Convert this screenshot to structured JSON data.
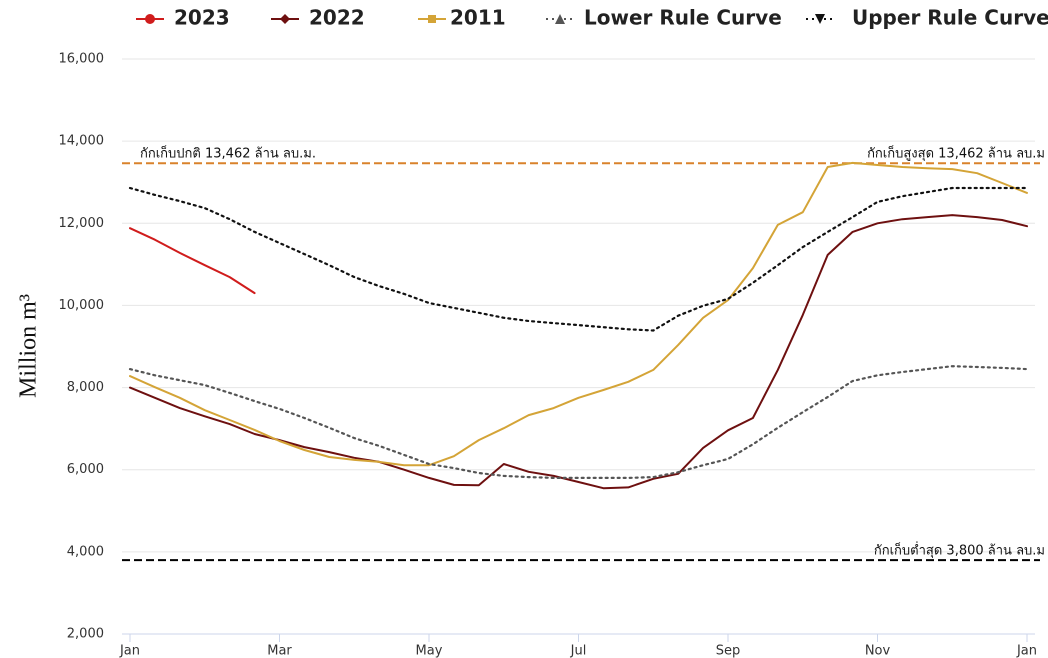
{
  "chart_data": {
    "type": "line",
    "y_label": "Million m³",
    "categories": [
      "Jan",
      null,
      null,
      null,
      null,
      null,
      "Mar",
      null,
      null,
      null,
      null,
      null,
      "May",
      null,
      null,
      null,
      null,
      null,
      "Jul",
      null,
      null,
      null,
      null,
      null,
      "Sep",
      null,
      null,
      null,
      null,
      null,
      "Nov",
      null,
      null,
      null,
      null,
      null,
      "Jan"
    ],
    "series": [
      {
        "name": "2023",
        "color": "#d01c1c",
        "marker": "circle",
        "dash": "solid",
        "values": [
          11880,
          11600,
          11280,
          10980,
          10690,
          10300,
          null,
          null,
          null,
          null,
          null,
          null,
          null,
          null,
          null,
          null,
          null,
          null,
          null,
          null,
          null,
          null,
          null,
          null,
          null,
          null,
          null,
          null,
          null,
          null,
          null,
          null,
          null,
          null,
          null,
          null,
          null
        ]
      },
      {
        "name": "2022",
        "color": "#6e1010",
        "marker": "diamond",
        "dash": "solid",
        "values": [
          8000,
          7750,
          7500,
          7300,
          7110,
          6870,
          6720,
          6550,
          6430,
          6290,
          6190,
          6000,
          5800,
          5630,
          5620,
          6140,
          5950,
          5850,
          5700,
          5550,
          5570,
          5780,
          5900,
          6530,
          6960,
          7260,
          8430,
          9770,
          11230,
          11790,
          12000,
          12100,
          12150,
          12200,
          12150,
          12080,
          11930
        ]
      },
      {
        "name": "2011",
        "color": "#d4a437",
        "marker": "square",
        "dash": "solid",
        "values": [
          8280,
          8010,
          7750,
          7450,
          7210,
          6970,
          6700,
          6480,
          6310,
          6240,
          6190,
          6110,
          6110,
          6330,
          6720,
          7010,
          7330,
          7500,
          7750,
          7940,
          8140,
          8430,
          9040,
          9700,
          10130,
          10910,
          11960,
          12270,
          13370,
          13470,
          13420,
          13370,
          13340,
          13320,
          13220,
          12980,
          12740
        ]
      },
      {
        "name": "Lower Rule Curve",
        "color": "#555555",
        "marker": "triangle",
        "dash": "dotted",
        "values": [
          8450,
          8300,
          8180,
          8060,
          7870,
          7670,
          7480,
          7260,
          7020,
          6770,
          6580,
          6360,
          6140,
          6040,
          5920,
          5850,
          5820,
          5800,
          5800,
          5800,
          5800,
          5820,
          5940,
          6110,
          6260,
          6620,
          7020,
          7400,
          7770,
          8160,
          8300,
          8380,
          8450,
          8520,
          8500,
          8480,
          8450
        ]
      },
      {
        "name": "Upper Rule Curve",
        "color": "#111111",
        "marker": "triangle-down",
        "dash": "dotted",
        "values": [
          12860,
          12690,
          12540,
          12370,
          12100,
          11790,
          11520,
          11250,
          10980,
          10690,
          10470,
          10280,
          10060,
          9940,
          9820,
          9700,
          9620,
          9570,
          9520,
          9470,
          9420,
          9390,
          9750,
          9990,
          10160,
          10550,
          10980,
          11420,
          11790,
          12150,
          12520,
          12660,
          12760,
          12860,
          12860,
          12860,
          12860
        ]
      }
    ],
    "reference_lines": [
      {
        "value": 13462,
        "color": "#d9822b",
        "labels": [
          {
            "text": "กักเก็บปกติ 13,462 ล้าน ลบ.ม.",
            "align": "left"
          },
          {
            "text": "กักเก็บสูงสุด 13,462 ล้าน ลบ.ม",
            "align": "right"
          }
        ]
      },
      {
        "value": 3800,
        "color": "#000000",
        "labels": [
          {
            "text": "กักเก็บต่ำสุด 3,800 ล้าน ลบ.ม",
            "align": "right"
          }
        ]
      }
    ],
    "ylim": [
      2000,
      16000
    ],
    "yticks": [
      {
        "value": 2000,
        "label": "2,000"
      },
      {
        "value": 4000,
        "label": "4,000"
      },
      {
        "value": 6000,
        "label": "6,000"
      },
      {
        "value": 8000,
        "label": "8,000"
      },
      {
        "value": 10000,
        "label": "10,000"
      },
      {
        "value": 12000,
        "label": "12,000"
      },
      {
        "value": 14000,
        "label": "14,000"
      },
      {
        "value": 16000,
        "label": "16,000"
      }
    ],
    "grid": true,
    "legend": "top"
  }
}
